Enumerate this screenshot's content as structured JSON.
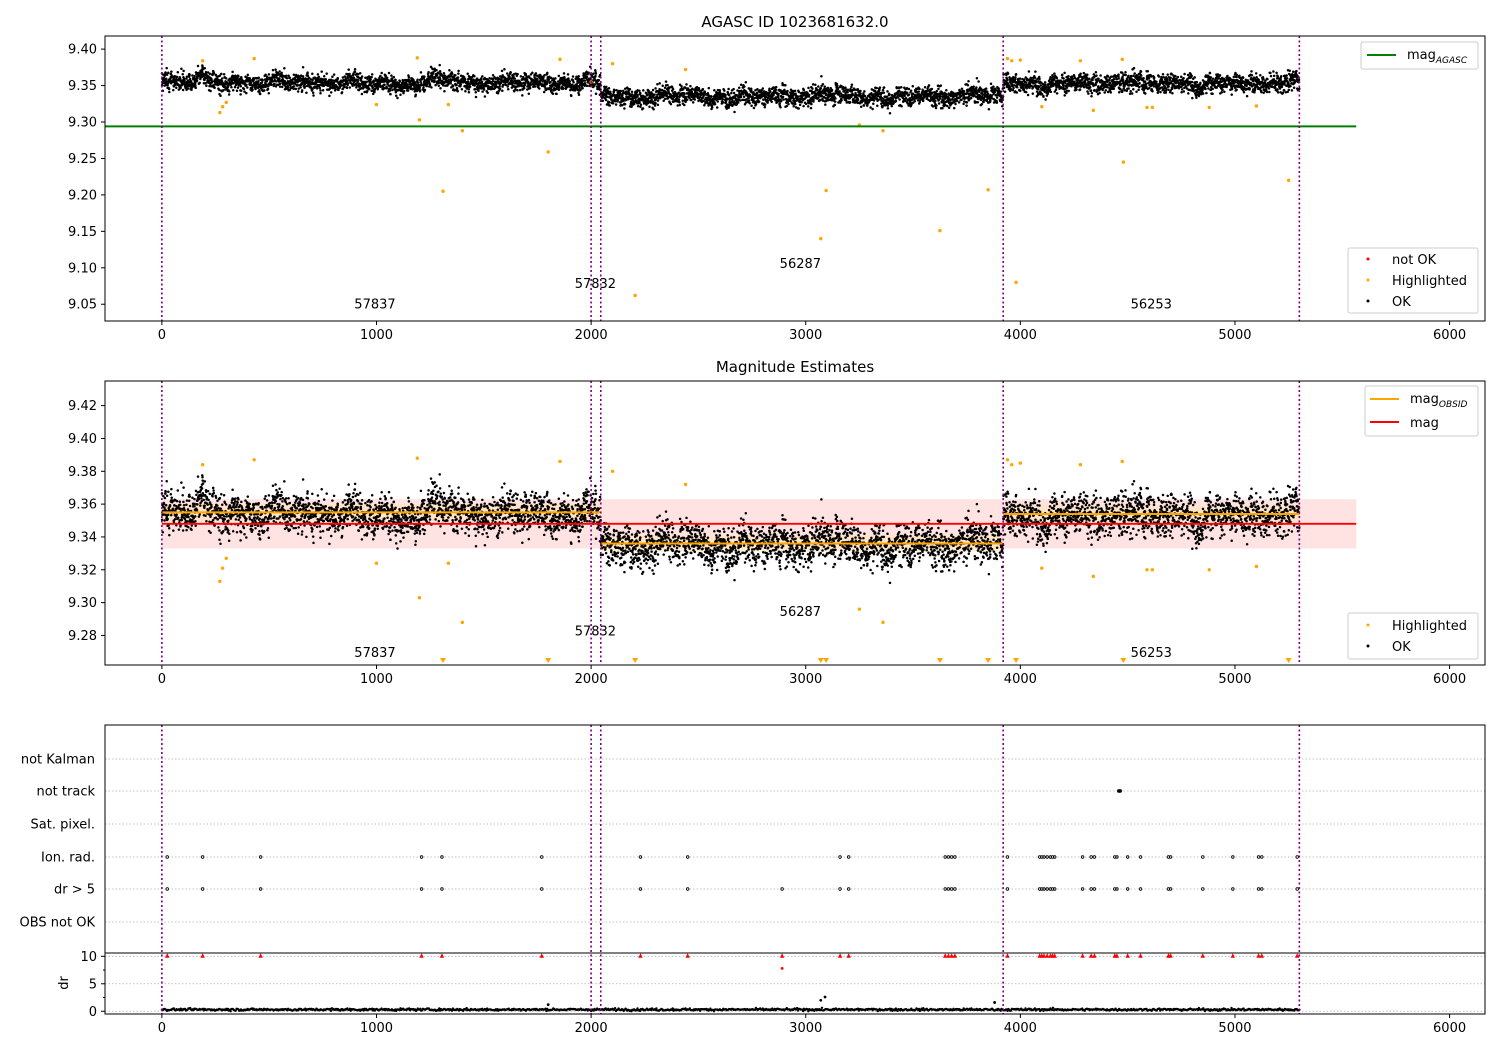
{
  "colors": {
    "ok": "#000000",
    "highlighted": "#ffa500",
    "not_ok": "#ff0000",
    "agasc_line": "#008000",
    "obsid_line": "#ffa500",
    "mag_line": "#ff0000",
    "mag_band": "#ffc0c0",
    "obsid_band": "#ffe4b5",
    "obs_boundary": "#800080",
    "grid": "#b0b0b0"
  },
  "chart_data": [
    {
      "type": "scatter",
      "title": "AGASC ID 1023681632.0",
      "xlim": [
        -265,
        6165
      ],
      "ylim": [
        9.027,
        9.418
      ],
      "xticks": [
        "0",
        "1000",
        "2000",
        "3000",
        "4000",
        "5000",
        "6000"
      ],
      "yticks": [
        "9.05",
        "9.10",
        "9.15",
        "9.20",
        "9.25",
        "9.30",
        "9.35",
        "9.40"
      ],
      "legend_lines": [
        {
          "label": "mag",
          "subscript": "AGASC"
        }
      ],
      "legend_points": [
        "not OK",
        "Highlighted",
        "OK"
      ],
      "horizontal_line": {
        "name": "mag_AGASC",
        "y": 9.294,
        "x": [
          -265,
          5565
        ]
      },
      "obs_boundaries": [
        0,
        2000,
        2045,
        3920,
        5300
      ],
      "observations": [
        {
          "obsid": "57837",
          "x0": 0,
          "x1": 2000,
          "ok_mean": 9.355,
          "label_at": [
            993,
            9.044
          ]
        },
        {
          "obsid": "57832",
          "x0": 2000,
          "x1": 2045,
          "ok_mean": 9.355,
          "label_at": [
            2020,
            9.072
          ]
        },
        {
          "obsid": "56287",
          "x0": 2045,
          "x1": 3920,
          "ok_mean": 9.336,
          "label_at": [
            2975,
            9.1
          ]
        },
        {
          "obsid": "56253",
          "x0": 3920,
          "x1": 5300,
          "ok_mean": 9.354,
          "label_at": [
            4610,
            9.044
          ]
        }
      ],
      "highlighted_points": [
        [
          190,
          9.384
        ],
        [
          270,
          9.313
        ],
        [
          283,
          9.321
        ],
        [
          300,
          9.327
        ],
        [
          430,
          9.387
        ],
        [
          1000,
          9.324
        ],
        [
          1190,
          9.388
        ],
        [
          1200,
          9.303
        ],
        [
          1310,
          9.205
        ],
        [
          1335,
          9.324
        ],
        [
          1400,
          9.288
        ],
        [
          1800,
          9.259
        ],
        [
          1855,
          9.386
        ],
        [
          2000,
          9.355
        ],
        [
          2100,
          9.38
        ],
        [
          2205,
          9.062
        ],
        [
          2440,
          9.372
        ],
        [
          3070,
          9.14
        ],
        [
          3095,
          9.206
        ],
        [
          3250,
          9.296
        ],
        [
          3360,
          9.288
        ],
        [
          3625,
          9.151
        ],
        [
          3850,
          9.207
        ],
        [
          3940,
          9.387
        ],
        [
          3960,
          9.384
        ],
        [
          3980,
          9.08
        ],
        [
          4000,
          9.385
        ],
        [
          4100,
          9.321
        ],
        [
          4280,
          9.384
        ],
        [
          4340,
          9.316
        ],
        [
          4475,
          9.386
        ],
        [
          4480,
          9.245
        ],
        [
          4590,
          9.32
        ],
        [
          4615,
          9.32
        ],
        [
          4880,
          9.32
        ],
        [
          5100,
          9.322
        ],
        [
          5250,
          9.22
        ]
      ]
    },
    {
      "type": "scatter",
      "title": "Magnitude Estimates",
      "xlim": [
        -265,
        6165
      ],
      "ylim": [
        9.262,
        9.435
      ],
      "xticks": [
        "0",
        "1000",
        "2000",
        "3000",
        "4000",
        "5000",
        "6000"
      ],
      "yticks": [
        "9.28",
        "9.30",
        "9.32",
        "9.34",
        "9.36",
        "9.38",
        "9.40",
        "9.42"
      ],
      "legend_lines": [
        {
          "label": "mag",
          "subscript": "OBSID"
        },
        {
          "label": "mag",
          "subscript": ""
        }
      ],
      "legend_points": [
        "Highlighted",
        "OK"
      ],
      "mag_line": {
        "y": 9.348,
        "band": [
          9.333,
          9.363
        ],
        "x": [
          0,
          5565
        ]
      },
      "obsid_mags": [
        {
          "obsid": "57837",
          "x0": 0,
          "x1": 2000,
          "mag": 9.355,
          "band": [
            9.35,
            9.36
          ],
          "label_at": [
            993,
            9.267
          ]
        },
        {
          "obsid": "57832",
          "x0": 2000,
          "x1": 2045,
          "mag": 9.355,
          "band": [
            9.35,
            9.36
          ],
          "label_at": [
            2020,
            9.28
          ]
        },
        {
          "obsid": "56287",
          "x0": 2045,
          "x1": 3920,
          "mag": 9.336,
          "band": [
            9.331,
            9.341
          ],
          "label_at": [
            2975,
            9.292
          ]
        },
        {
          "obsid": "56253",
          "x0": 3920,
          "x1": 5300,
          "mag": 9.354,
          "band": [
            9.349,
            9.359
          ],
          "label_at": [
            4610,
            9.267
          ]
        }
      ],
      "out_of_range_markers_x": [
        1310,
        1800,
        2205,
        3070,
        3095,
        3625,
        3850,
        3980,
        4480,
        5250
      ]
    },
    {
      "type": "scatter",
      "title": "",
      "xlim": [
        -265,
        6165
      ],
      "xticks": [
        "0",
        "1000",
        "2000",
        "3000",
        "4000",
        "5000",
        "6000"
      ],
      "flag_rows": [
        "not Kalman",
        "not track",
        "Sat. pixel.",
        "Ion. rad.",
        "dr > 5",
        "OBS not OK"
      ],
      "flag_events": {
        "not track": [
          4458,
          4462,
          4466
        ],
        "Ion. rad.": [
          25,
          190,
          460,
          1210,
          1305,
          1770,
          2230,
          2450,
          3160,
          3200,
          3650,
          3665,
          3680,
          3695,
          3940,
          4090,
          4100,
          4110,
          4125,
          4140,
          4150,
          4160,
          4290,
          4330,
          4345,
          4440,
          4450,
          4500,
          4560,
          4690,
          4700,
          4850,
          4990,
          5110,
          5125,
          5290
        ],
        "dr > 5": [
          25,
          190,
          460,
          1210,
          1305,
          1770,
          2230,
          2450,
          2890,
          3160,
          3200,
          3650,
          3665,
          3680,
          3695,
          3940,
          4090,
          4100,
          4110,
          4125,
          4140,
          4150,
          4160,
          4290,
          4330,
          4345,
          4440,
          4450,
          4500,
          4560,
          4690,
          4700,
          4850,
          4990,
          5110,
          5125,
          5290
        ]
      },
      "dr_panel": {
        "ylabel": "dr",
        "yticks": [
          "0",
          "5",
          "10"
        ],
        "ylim": [
          -0.5,
          10.6
        ],
        "clipped_value": 10,
        "baseline_mean": 0.3,
        "outliers": [
          [
            2890,
            7.8
          ],
          [
            3090,
            2.6
          ],
          [
            3070,
            2.0
          ],
          [
            3880,
            1.6
          ],
          [
            1800,
            1.2
          ]
        ]
      }
    }
  ]
}
